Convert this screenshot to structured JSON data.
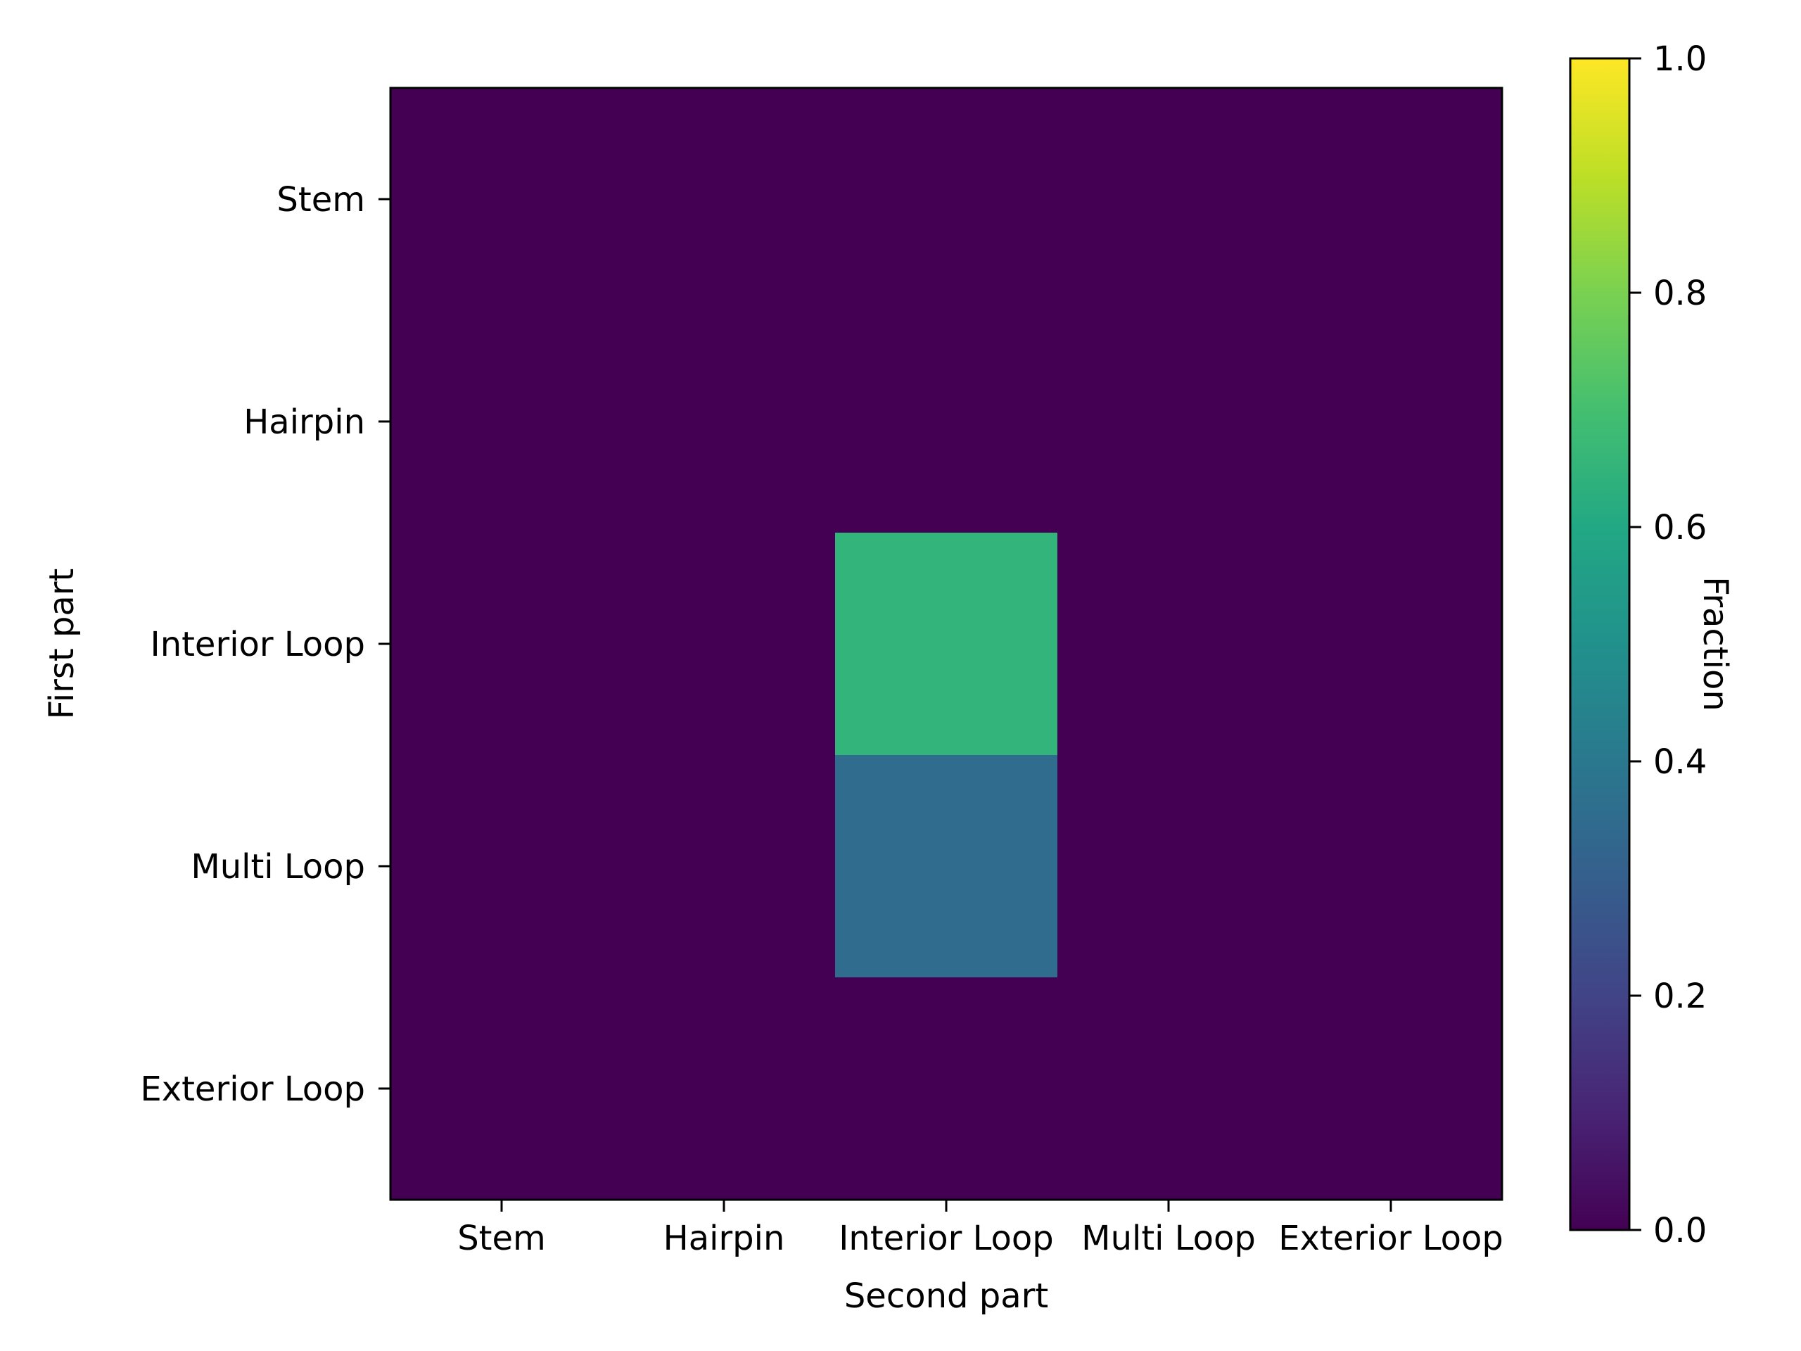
{
  "chart_data": {
    "type": "heatmap",
    "xlabel": "Second part",
    "ylabel": "First part",
    "x_categories": [
      "Stem",
      "Hairpin",
      "Interior Loop",
      "Multi Loop",
      "Exterior Loop"
    ],
    "y_categories": [
      "Stem",
      "Hairpin",
      "Interior Loop",
      "Multi Loop",
      "Exterior Loop"
    ],
    "values": [
      [
        0,
        0,
        0,
        0,
        0
      ],
      [
        0,
        0,
        0,
        0,
        0
      ],
      [
        0,
        0,
        0.65,
        0,
        0
      ],
      [
        0,
        0,
        0.35,
        0,
        0
      ],
      [
        0,
        0,
        0,
        0,
        0
      ]
    ],
    "colorbar": {
      "label": "Fraction",
      "range": [
        0.0,
        1.0
      ],
      "ticks": [
        "0.0",
        "0.2",
        "0.4",
        "0.6",
        "0.8",
        "1.0"
      ],
      "colormap": "viridis"
    },
    "grid": false
  }
}
